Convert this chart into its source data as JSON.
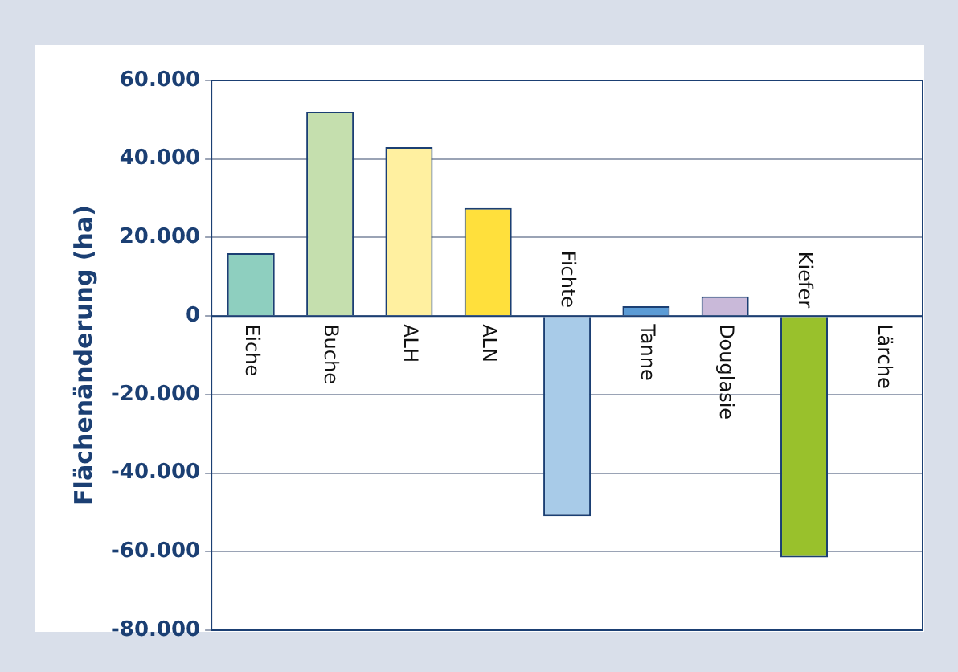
{
  "chart_data": {
    "type": "bar",
    "ylabel": "Flächenänderung (ha)",
    "categories": [
      "Eiche",
      "Buche",
      "ALH",
      "ALN",
      "Fichte",
      "Tanne",
      "Douglasie",
      "Kiefer",
      "Lärche"
    ],
    "values": [
      16000,
      52000,
      43000,
      27500,
      -51000,
      2500,
      5000,
      -61500,
      0
    ],
    "colors": [
      "#8ecfbf",
      "#c5dfae",
      "#fff0a0",
      "#ffe03c",
      "#a8cbe8",
      "#5b9bd5",
      "#c9b9d9",
      "#99c12c",
      "#d9d9d9"
    ],
    "ylim": [
      -80000,
      60000
    ],
    "yticks": [
      {
        "value": -80000,
        "label": "-80.000"
      },
      {
        "value": -60000,
        "label": "-60.000"
      },
      {
        "value": -40000,
        "label": "-40.000"
      },
      {
        "value": -20000,
        "label": "-20.000"
      },
      {
        "value": 0,
        "label": "0"
      },
      {
        "value": 20000,
        "label": "20.000"
      },
      {
        "value": 40000,
        "label": "40.000"
      },
      {
        "value": 60000,
        "label": "60.000"
      }
    ],
    "grid": "y",
    "legend": false
  }
}
